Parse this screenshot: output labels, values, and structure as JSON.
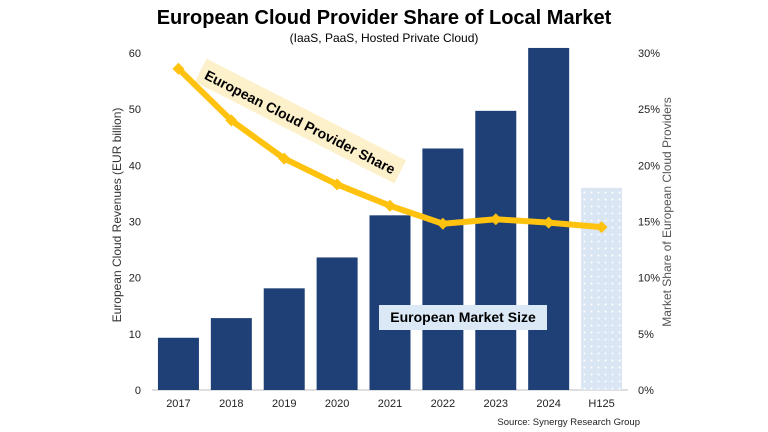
{
  "chart_data": {
    "type": "bar",
    "title": "European Cloud Provider Share of Local Market",
    "subtitle": "(IaaS, PaaS, Hosted Private Cloud)",
    "ylabel": "European Cloud Revenues (EUR billion)",
    "y2label": "Market Share of European Cloud Providers",
    "ylim": [
      0,
      60
    ],
    "y2lim": [
      0,
      30
    ],
    "yticks": [
      "0",
      "10",
      "20",
      "30",
      "40",
      "50",
      "60"
    ],
    "y2ticks": [
      "0%",
      "5%",
      "10%",
      "15%",
      "20%",
      "25%",
      "30%"
    ],
    "categories": [
      "2017",
      "2018",
      "2019",
      "2020",
      "2021",
      "2022",
      "2023",
      "2024",
      "H125"
    ],
    "series": [
      {
        "name": "European Market Size",
        "type": "bar",
        "axis": "left",
        "values": [
          9.3,
          12.8,
          18.1,
          23.6,
          31.1,
          43.0,
          49.7,
          60.9,
          36.0
        ],
        "colors": [
          "#1f3f77",
          "#1f3f77",
          "#1f3f77",
          "#1f3f77",
          "#1f3f77",
          "#1f3f77",
          "#1f3f77",
          "#1f3f77",
          "#dbe6f4"
        ]
      },
      {
        "name": "European Cloud Provider Share",
        "type": "line",
        "axis": "right",
        "color": "#ffc20e",
        "values": [
          28.6,
          24.0,
          20.6,
          18.3,
          16.4,
          14.8,
          15.2,
          14.9,
          14.5
        ]
      }
    ],
    "annotations": {
      "share_label": "European Cloud Provider Share",
      "size_label": "European Market Size"
    },
    "source": "Source: Synergy Research Group"
  }
}
